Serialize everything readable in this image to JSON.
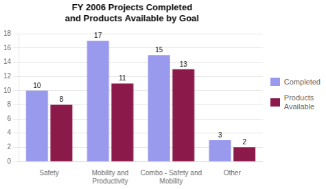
{
  "chart_data": {
    "type": "bar",
    "title": "FY 2006 Projects Completed\nand Products Available by Goal",
    "categories": [
      "Safety",
      "Mobility and\nProductivity",
      "Combo - Safety and\nMobility",
      "Other"
    ],
    "series": [
      {
        "name": "Completed",
        "color": "#9999ee",
        "values": [
          10,
          17,
          15,
          3
        ]
      },
      {
        "name": "Products\nAvailable",
        "color": "#8b1a4a",
        "values": [
          8,
          11,
          13,
          2
        ]
      }
    ],
    "ylim": [
      0,
      18
    ],
    "yticks": [
      0,
      2,
      4,
      6,
      8,
      10,
      12,
      14,
      16,
      18
    ],
    "grid": true,
    "legend": "right",
    "data_labels": true
  }
}
